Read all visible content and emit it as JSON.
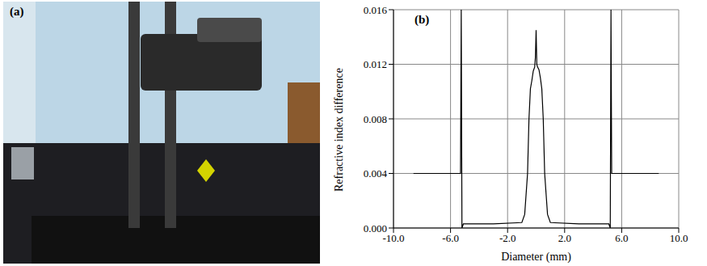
{
  "photo": {
    "label": "(a)"
  },
  "chart_data": {
    "type": "line",
    "title": "(b)",
    "x_label": "Diameter (mm)",
    "y_label": "Refractive index difference",
    "xlim": [
      -10,
      10
    ],
    "xticks": [
      {
        "value": -10,
        "label": "-10.0"
      },
      {
        "value": -6,
        "label": "-6.0"
      },
      {
        "value": -2,
        "label": "-2.0"
      },
      {
        "value": 2,
        "label": "2.0"
      },
      {
        "value": 6,
        "label": "6.0"
      },
      {
        "value": 10,
        "label": "10.0"
      }
    ],
    "ylim": [
      0,
      0.016
    ],
    "yticks": [
      {
        "value": 0,
        "label": "0.000"
      },
      {
        "value": 0.004,
        "label": "0.004"
      },
      {
        "value": 0.008,
        "label": "0.008"
      },
      {
        "value": 0.012,
        "label": "0.012"
      },
      {
        "value": 0.016,
        "label": "0.016"
      }
    ],
    "grid": true,
    "color": "#000000",
    "x": [
      -8.6,
      -5.3,
      -5.25,
      -5.2,
      -5.1,
      -3,
      -1.0,
      -0.8,
      -0.6,
      -0.5,
      -0.4,
      -0.3,
      -0.2,
      -0.1,
      -0.05,
      0,
      0.05,
      0.1,
      0.2,
      0.3,
      0.4,
      0.5,
      0.6,
      0.8,
      1.0,
      3,
      5.1,
      5.2,
      5.25,
      5.3,
      8.6
    ],
    "values": [
      0.004,
      0.004,
      0.016,
      0.0,
      0.0003,
      0.0003,
      0.0004,
      0.001,
      0.004,
      0.008,
      0.0102,
      0.0108,
      0.0115,
      0.0118,
      0.0125,
      0.0145,
      0.012,
      0.0118,
      0.0116,
      0.011,
      0.0102,
      0.008,
      0.004,
      0.001,
      0.0004,
      0.0003,
      0.0003,
      0.0,
      0.016,
      0.004,
      0.004
    ]
  }
}
